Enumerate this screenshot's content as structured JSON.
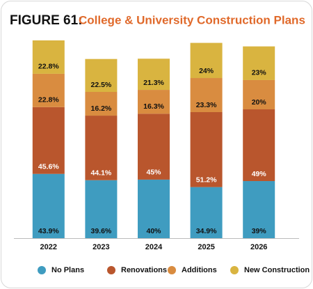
{
  "chart_data": {
    "type": "stacked-bar",
    "title": "FIGURE 61:",
    "subtitle": "College & University Construction Plans",
    "categories": [
      "2022",
      "2023",
      "2024",
      "2025",
      "2026"
    ],
    "series": [
      {
        "name": "No Plans",
        "color": "#3f9cc0",
        "values": [
          43.9,
          39.6,
          40,
          34.9,
          39
        ],
        "value_labels": [
          "43.9%",
          "39.6%",
          "40%",
          "34.9%",
          "39%"
        ]
      },
      {
        "name": "Renovations",
        "color": "#b9562d",
        "values": [
          45.6,
          44.1,
          45,
          51.2,
          49
        ],
        "value_labels": [
          "45.6%",
          "44.1%",
          "45%",
          "51.2%",
          "49%"
        ]
      },
      {
        "name": "Additions",
        "color": "#d98c40",
        "values": [
          22.8,
          16.2,
          16.3,
          23.3,
          20
        ],
        "value_labels": [
          "22.8%",
          "16.2%",
          "16.3%",
          "23.3%",
          "20%"
        ]
      },
      {
        "name": "New Construction",
        "color": "#d9b440",
        "values": [
          22.8,
          22.5,
          21.3,
          24,
          23
        ],
        "value_labels": [
          "22.8%",
          "22.5%",
          "21.3%",
          "24%",
          "23%"
        ]
      }
    ],
    "legend": "bottom"
  }
}
